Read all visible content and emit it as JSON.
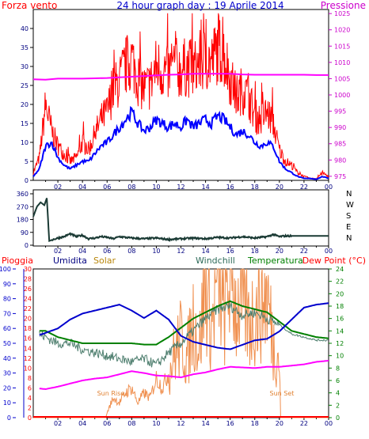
{
  "chart_data": [
    {
      "type": "line",
      "title": "24 hour graph day : 19 Aprile 2014",
      "left_axis_label": "Forza vento",
      "right_axis_label": "Pressione",
      "ylim": [
        0,
        45
      ],
      "yticks": [
        0,
        5,
        10,
        15,
        20,
        25,
        30,
        35,
        40
      ],
      "y2lim": [
        973.75,
        1026.25
      ],
      "y2ticks": [
        975,
        980,
        985,
        990,
        995,
        1000,
        1005,
        1010,
        1015,
        1020,
        1025
      ],
      "xlim": [
        0,
        24
      ],
      "xticks": [
        "02",
        "04",
        "06",
        "08",
        "10",
        "12",
        "14",
        "16",
        "18",
        "20",
        "22",
        "00"
      ],
      "series": [
        {
          "color": "#ff0000",
          "x": [
            0.0,
            0.5,
            1.0,
            1.5,
            2.0,
            2.5,
            3.0,
            3.5,
            4.0,
            4.5,
            5.0,
            5.5,
            6.0,
            6.5,
            7.0,
            7.5,
            8.0,
            8.5,
            9.0,
            9.5,
            10.0,
            10.5,
            11.0,
            11.5,
            12.0,
            12.5,
            13.0,
            13.5,
            14.0,
            14.5,
            15.0,
            15.5,
            16.0,
            16.5,
            17.0,
            17.5,
            18.0,
            18.5,
            19.0,
            19.5,
            20.0,
            20.5,
            21.0,
            21.5,
            22.0,
            22.5,
            23.0,
            23.5,
            24.0
          ],
          "values": [
            2,
            6,
            20,
            13,
            9,
            7,
            5,
            6,
            10,
            8,
            12,
            16,
            18,
            24,
            26,
            30,
            32,
            27,
            24,
            25,
            30,
            29,
            28,
            30,
            29,
            30,
            29,
            31,
            32,
            31,
            35,
            33,
            27,
            22,
            24,
            22,
            17,
            16,
            18,
            15,
            8,
            5,
            4,
            2,
            1,
            0.5,
            0.5,
            2,
            1
          ]
        },
        {
          "color": "#0000ff",
          "x": [
            0.0,
            0.5,
            1.0,
            1.5,
            2.0,
            2.5,
            3.0,
            3.5,
            4.0,
            4.5,
            5.0,
            5.5,
            6.0,
            6.5,
            7.0,
            7.5,
            8.0,
            8.5,
            9.0,
            9.5,
            10.0,
            10.5,
            11.0,
            11.5,
            12.0,
            12.5,
            13.0,
            13.5,
            14.0,
            14.5,
            15.0,
            15.5,
            16.0,
            16.5,
            17.0,
            17.5,
            18.0,
            18.5,
            19.0,
            19.5,
            20.0,
            20.5,
            21.0,
            21.5,
            22.0,
            22.5,
            23.0,
            23.5,
            24.0
          ],
          "values": [
            1,
            3,
            9,
            10,
            6,
            4,
            3,
            4,
            5,
            5,
            7,
            9,
            10,
            12,
            14,
            16,
            18,
            15,
            13,
            14,
            16,
            15,
            14,
            15,
            14,
            16,
            14,
            15,
            16,
            15,
            17,
            16,
            14,
            12,
            13,
            12,
            10,
            9,
            10,
            9,
            5,
            3,
            2,
            1,
            0.5,
            0.5,
            0.3,
            1,
            0.5
          ]
        },
        {
          "color": "#ff00ff",
          "axis": "right",
          "x": [
            0,
            1,
            2,
            3,
            4,
            5,
            6,
            7,
            8,
            9,
            10,
            11,
            12,
            13,
            14,
            15,
            16,
            17,
            18,
            19,
            20,
            21,
            22,
            23,
            24
          ],
          "values": [
            1004.8,
            1004.7,
            1005.0,
            1005.0,
            1005.0,
            1005.1,
            1005.2,
            1005.4,
            1005.6,
            1005.8,
            1006.0,
            1006.2,
            1006.3,
            1006.5,
            1006.5,
            1006.5,
            1006.5,
            1006.3,
            1006.2,
            1006.2,
            1006.2,
            1006.2,
            1006.2,
            1006.1,
            1006.1
          ]
        }
      ]
    },
    {
      "type": "line",
      "ylim": [
        0,
        360
      ],
      "yticks": [
        0,
        90,
        180,
        270,
        360
      ],
      "right_labels": [
        "N",
        "W",
        "S",
        "E",
        "N"
      ],
      "xlim": [
        0,
        24
      ],
      "xticks": [
        "02",
        "04",
        "06",
        "08",
        "10",
        "12",
        "14",
        "16",
        "18",
        "20",
        "22",
        "00"
      ],
      "series": [
        {
          "color": "#1a3a34",
          "x": [
            0.0,
            0.3,
            0.6,
            0.9,
            1.1,
            1.3,
            1.6,
            2.0,
            2.5,
            3.0,
            3.5,
            4.0,
            4.5,
            5.0,
            5.5,
            6.0,
            6.5,
            7.0,
            7.5,
            8.0,
            9.0,
            10.0,
            11.0,
            12.0,
            13.0,
            14.0,
            15.0,
            16.0,
            17.0,
            18.0,
            19.0,
            19.5,
            20.0,
            20.5,
            21.0,
            22.0,
            23.0,
            24.0
          ],
          "values": [
            200,
            270,
            300,
            280,
            330,
            30,
            40,
            50,
            60,
            80,
            60,
            70,
            45,
            50,
            60,
            55,
            45,
            60,
            55,
            50,
            45,
            50,
            40,
            45,
            50,
            45,
            55,
            50,
            60,
            50,
            60,
            75,
            60,
            65,
            65,
            65,
            65,
            65
          ]
        }
      ]
    },
    {
      "type": "line",
      "legend": [
        "Pioggia",
        "Umidita",
        "Solar",
        "Windchill",
        "Temperatura",
        "Dew Point (°C)"
      ],
      "ylim_humidity": [
        0,
        100
      ],
      "yticks_humidity": [
        0,
        10,
        20,
        30,
        40,
        50,
        60,
        70,
        80,
        90,
        100
      ],
      "ylim_rain": [
        0,
        30
      ],
      "yticks_rain": [
        0,
        2,
        4,
        6,
        8,
        10,
        12,
        14,
        16,
        18,
        20,
        22,
        24,
        26,
        28,
        30
      ],
      "ylim_temp": [
        0,
        24
      ],
      "yticks_temp": [
        0,
        2,
        4,
        6,
        8,
        10,
        12,
        14,
        16,
        18,
        20,
        22,
        24
      ],
      "xlim": [
        0,
        24
      ],
      "xticks": [
        "02",
        "04",
        "06",
        "08",
        "10",
        "12",
        "14",
        "16",
        "18",
        "20",
        "22",
        "00"
      ],
      "annotations": [
        {
          "text": "Sun Rise",
          "x": 6.3
        },
        {
          "text": "Sun Set",
          "x": 20.2
        }
      ],
      "series": [
        {
          "name": "Umidita",
          "color": "#0000cd",
          "x": [
            0,
            1,
            2,
            3,
            4,
            5,
            6,
            7,
            8,
            9,
            10,
            11,
            12,
            13,
            14,
            15,
            16,
            17,
            18,
            19,
            20,
            21,
            22,
            23,
            24
          ],
          "values": [
            54,
            57,
            60,
            66,
            70,
            72,
            74,
            76,
            72,
            67,
            72,
            66,
            55,
            51,
            49,
            47,
            46,
            49,
            52,
            53,
            58,
            66,
            74,
            76,
            77
          ]
        },
        {
          "name": "Solar",
          "color": "#f09050",
          "x": [
            0,
            5.9,
            6.0,
            6.5,
            7.0,
            7.5,
            8.0,
            8.5,
            9.0,
            9.5,
            10.0,
            10.5,
            11.0,
            11.5,
            12.0,
            12.5,
            13.0,
            13.5,
            14.0,
            14.5,
            15.0,
            15.5,
            16.0,
            16.5,
            17.0,
            17.5,
            18.0,
            18.5,
            19.0,
            19.5,
            20.0,
            20.1,
            24.0
          ],
          "values": [
            0,
            0,
            1,
            4,
            3,
            5,
            6,
            3,
            5,
            4,
            8,
            6,
            9,
            13,
            16,
            12,
            20,
            14,
            28,
            18,
            29,
            20,
            30,
            22,
            24,
            19,
            21,
            23,
            25,
            15,
            12,
            0,
            0
          ]
        },
        {
          "name": "Windchill",
          "color": "#4f7f6f",
          "x": [
            0,
            1,
            2,
            3,
            4,
            5,
            6,
            7,
            8,
            9,
            10,
            11,
            12,
            13,
            14,
            15,
            16,
            17,
            18,
            19,
            20,
            21,
            22,
            23,
            24
          ],
          "values": [
            14,
            13,
            12,
            12,
            11,
            10.5,
            10,
            9.5,
            9,
            9.5,
            8.5,
            10.5,
            12,
            14,
            16,
            17.5,
            18,
            16.5,
            17,
            16,
            15,
            13.5,
            13,
            12.5,
            12.5
          ]
        },
        {
          "name": "Temperatura",
          "color": "#008000",
          "x": [
            0,
            1,
            2,
            3,
            4,
            5,
            6,
            7,
            8,
            9,
            10,
            11,
            12,
            13,
            14,
            15,
            16,
            17,
            18,
            19,
            20,
            21,
            22,
            23,
            24
          ],
          "values": [
            14,
            14,
            13,
            12.5,
            12,
            12,
            12,
            12,
            12,
            11.8,
            11.8,
            13,
            14.5,
            16,
            17,
            18,
            18.8,
            18,
            17.5,
            17,
            15.5,
            14,
            13.5,
            13,
            12.8
          ]
        },
        {
          "name": "Dew Point (°C)",
          "color": "#ff00ff",
          "x": [
            0,
            1,
            2,
            3,
            4,
            5,
            6,
            7,
            8,
            9,
            10,
            11,
            12,
            13,
            14,
            15,
            16,
            17,
            18,
            19,
            20,
            21,
            22,
            23,
            24
          ],
          "values": [
            4.8,
            4.6,
            5,
            5.5,
            6,
            6.3,
            6.5,
            7,
            7.5,
            7.2,
            6.8,
            6.7,
            6.5,
            7,
            7.3,
            7.8,
            8.2,
            8.1,
            8,
            8.2,
            8.2,
            8.4,
            8.6,
            9,
            9.2
          ]
        },
        {
          "name": "Pioggia",
          "color": "#ff0000",
          "x": [
            0,
            24
          ],
          "values": [
            0,
            0
          ]
        }
      ]
    }
  ]
}
